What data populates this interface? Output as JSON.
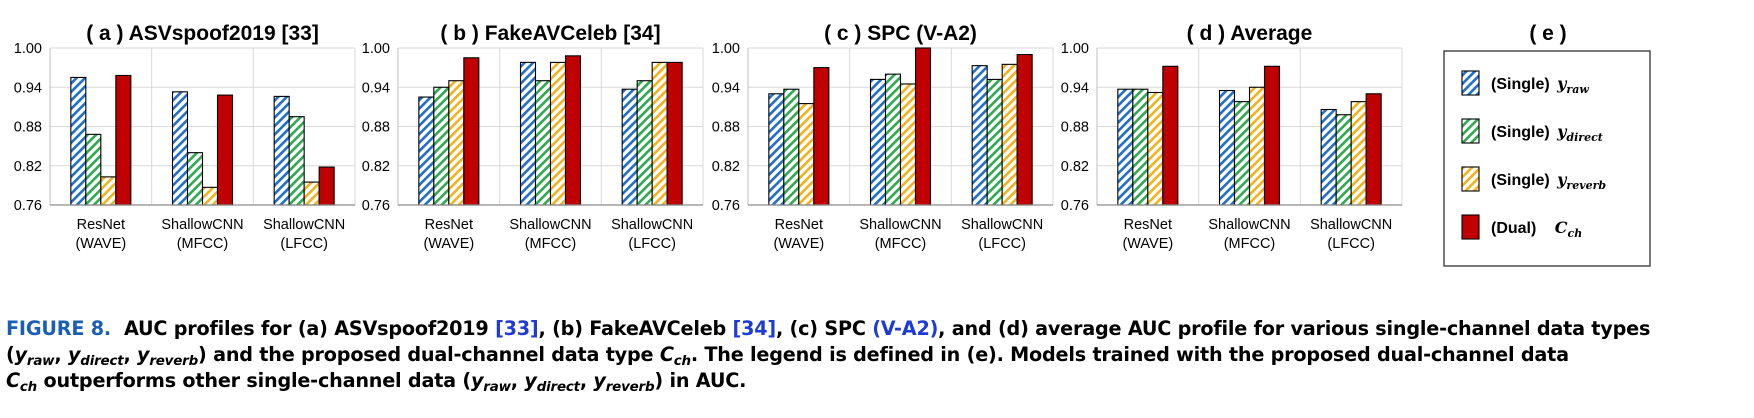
{
  "chart_data": [
    {
      "type": "bar",
      "title": "( a ) ASVspoof2019 [33]",
      "categories": [
        "ResNet\n(WAVE)",
        "ShallowCNN\n(MFCC)",
        "ShallowCNN\n(LFCC)"
      ],
      "yticks": [
        "0.76",
        "0.82",
        "0.88",
        "0.94",
        "1.00"
      ],
      "ylim": [
        0.76,
        1.0
      ],
      "series": [
        {
          "key": "raw",
          "values": [
            0.955,
            0.933,
            0.926
          ]
        },
        {
          "key": "direct",
          "values": [
            0.868,
            0.84,
            0.895
          ]
        },
        {
          "key": "reverb",
          "values": [
            0.803,
            0.787,
            0.795
          ]
        },
        {
          "key": "dual",
          "values": [
            0.958,
            0.928,
            0.818
          ]
        }
      ]
    },
    {
      "type": "bar",
      "title": "( b ) FakeAVCeleb [34]",
      "categories": [
        "ResNet\n(WAVE)",
        "ShallowCNN\n(MFCC)",
        "ShallowCNN\n(LFCC)"
      ],
      "yticks": [
        "0.76",
        "0.82",
        "0.88",
        "0.94",
        "1.00"
      ],
      "ylim": [
        0.76,
        1.0
      ],
      "series": [
        {
          "key": "raw",
          "values": [
            0.925,
            0.978,
            0.937
          ]
        },
        {
          "key": "direct",
          "values": [
            0.94,
            0.95,
            0.95
          ]
        },
        {
          "key": "reverb",
          "values": [
            0.95,
            0.978,
            0.978
          ]
        },
        {
          "key": "dual",
          "values": [
            0.985,
            0.988,
            0.978
          ]
        }
      ]
    },
    {
      "type": "bar",
      "title": "( c ) SPC (V-A2)",
      "categories": [
        "ResNet\n(WAVE)",
        "ShallowCNN\n(MFCC)",
        "ShallowCNN\n(LFCC)"
      ],
      "yticks": [
        "0.76",
        "0.82",
        "0.88",
        "0.94",
        "1.00"
      ],
      "ylim": [
        0.76,
        1.0
      ],
      "series": [
        {
          "key": "raw",
          "values": [
            0.93,
            0.952,
            0.973
          ]
        },
        {
          "key": "direct",
          "values": [
            0.937,
            0.96,
            0.952
          ]
        },
        {
          "key": "reverb",
          "values": [
            0.915,
            0.945,
            0.975
          ]
        },
        {
          "key": "dual",
          "values": [
            0.97,
            1.0,
            0.99
          ]
        }
      ]
    },
    {
      "type": "bar",
      "title": "( d ) Average",
      "categories": [
        "ResNet\n(WAVE)",
        "ShallowCNN\n(MFCC)",
        "ShallowCNN\n(LFCC)"
      ],
      "yticks": [
        "0.76",
        "0.82",
        "0.88",
        "0.94",
        "1.00"
      ],
      "ylim": [
        0.76,
        1.0
      ],
      "series": [
        {
          "key": "raw",
          "values": [
            0.937,
            0.935,
            0.906
          ]
        },
        {
          "key": "direct",
          "values": [
            0.937,
            0.918,
            0.898
          ]
        },
        {
          "key": "reverb",
          "values": [
            0.932,
            0.94,
            0.918
          ]
        },
        {
          "key": "dual",
          "values": [
            0.972,
            0.972,
            0.93
          ]
        }
      ]
    }
  ],
  "legend": {
    "title": "( e )",
    "items": [
      {
        "key": "raw",
        "prefix": "(Single)",
        "sym": "y",
        "sub": "raw"
      },
      {
        "key": "direct",
        "prefix": "(Single)",
        "sym": "y",
        "sub": "direct"
      },
      {
        "key": "reverb",
        "prefix": "(Single)",
        "sym": "y",
        "sub": "reverb"
      },
      {
        "key": "dual",
        "prefix": "(Dual)",
        "sym": "C",
        "sub": "ch"
      }
    ]
  },
  "colors": {
    "raw": "#1f6fc7",
    "direct": "#2fa84f",
    "reverb": "#f2b21b",
    "dual": "#c00000",
    "grid": "#d9d9d9",
    "axis": "#bfbfbf"
  },
  "caption": {
    "label": "FIGURE 8.",
    "text_1": "AUC profiles for (a) ASVspoof2019 ",
    "ref_33": "[33]",
    "text_2": ", (b) FakeAVCeleb ",
    "ref_34": "[34]",
    "text_3": ", (c) SPC ",
    "ref_va2": "(V-A2)",
    "text_4": ", and (d) average AUC profile for various single-channel data types",
    "text_5": "(",
    "y": "y",
    "sub_raw": "raw",
    "sub_direct": "direct",
    "sub_reverb": "reverb",
    "sep": ", ",
    "text_6": ") and the proposed dual-channel data type ",
    "c": "C",
    "sub_ch": "ch",
    "text_7": ". The legend is defined in (e). Models trained with the proposed dual-channel data",
    "text_8": " outperforms other single-channel data (",
    "text_9": ") in AUC."
  }
}
